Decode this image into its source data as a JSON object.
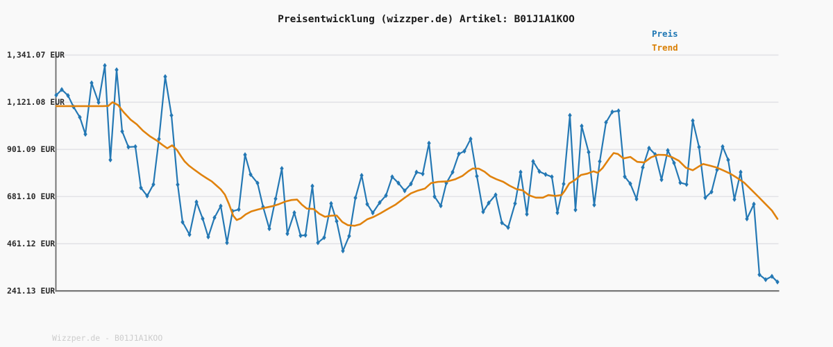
{
  "title": "Preisentwicklung (wizzper.de) Artikel: B01J1A1KOO",
  "watermark": "Wizzper.de - B01J1A1KOO",
  "legend": {
    "items": [
      {
        "label": "Preis",
        "color": "#1f77b4"
      },
      {
        "label": "Trend",
        "color": "#d97f04"
      }
    ]
  },
  "chart_data": {
    "type": "line",
    "title": "Preisentwicklung (wizzper.de) Artikel: B01J1A1KOO",
    "grid": true,
    "legend_position": "top-right",
    "x_axis": {
      "labels_visible": false
    },
    "y_axis": {
      "unit": "EUR",
      "ticks": [
        {
          "value": 1341.07,
          "label": "1,341.07 EUR"
        },
        {
          "value": 1121.08,
          "label": "1,121.08 EUR"
        },
        {
          "value": 901.09,
          "label": "901.09 EUR"
        },
        {
          "value": 681.1,
          "label": "681.10 EUR"
        },
        {
          "value": 461.12,
          "label": "461.12 EUR"
        },
        {
          "value": 241.13,
          "label": "241.13 EUR"
        }
      ]
    },
    "ylim": [
      241.13,
      1355.0
    ],
    "style": {
      "background": "#f9f9f9",
      "grid_color": "#e3e3e7",
      "axis_color": "#707070",
      "price_color": "#2478b4",
      "trend_color": "#e0820d",
      "marker": "diamond"
    },
    "series": [
      {
        "name": "Preis",
        "color": "#2478b4",
        "marker": "diamond",
        "points": [
          [
            81,
            1154
          ],
          [
            89,
            1180
          ],
          [
            98,
            1152
          ],
          [
            106,
            1099
          ],
          [
            115,
            1051
          ],
          [
            123,
            972
          ],
          [
            132,
            1211
          ],
          [
            142,
            1120
          ],
          [
            151,
            1292
          ],
          [
            159,
            852
          ],
          [
            168,
            1272
          ],
          [
            176,
            985
          ],
          [
            185,
            912
          ],
          [
            195,
            914
          ],
          [
            203,
            722
          ],
          [
            212,
            684
          ],
          [
            221,
            738
          ],
          [
            229,
            950
          ],
          [
            238,
            1240
          ],
          [
            247,
            1060
          ],
          [
            256,
            737
          ],
          [
            263,
            562
          ],
          [
            273,
            504
          ],
          [
            283,
            656
          ],
          [
            292,
            578
          ],
          [
            300,
            493
          ],
          [
            309,
            583
          ],
          [
            318,
            637
          ],
          [
            327,
            466
          ],
          [
            335,
            613
          ],
          [
            344,
            621
          ],
          [
            353,
            876
          ],
          [
            361,
            784
          ],
          [
            371,
            744
          ],
          [
            379,
            633
          ],
          [
            388,
            531
          ],
          [
            397,
            671
          ],
          [
            406,
            812
          ],
          [
            414,
            508
          ],
          [
            424,
            606
          ],
          [
            433,
            499
          ],
          [
            440,
            501
          ],
          [
            450,
            730
          ],
          [
            458,
            466
          ],
          [
            467,
            490
          ],
          [
            477,
            649
          ],
          [
            485,
            566
          ],
          [
            494,
            428
          ],
          [
            503,
            497
          ],
          [
            512,
            675
          ],
          [
            521,
            780
          ],
          [
            529,
            646
          ],
          [
            537,
            605
          ],
          [
            547,
            653
          ],
          [
            556,
            686
          ],
          [
            565,
            773
          ],
          [
            574,
            744
          ],
          [
            583,
            708
          ],
          [
            592,
            740
          ],
          [
            600,
            795
          ],
          [
            609,
            787
          ],
          [
            618,
            930
          ],
          [
            626,
            681
          ],
          [
            635,
            638
          ],
          [
            643,
            744
          ],
          [
            652,
            795
          ],
          [
            661,
            880
          ],
          [
            669,
            893
          ],
          [
            678,
            950
          ],
          [
            687,
            776
          ],
          [
            696,
            610
          ],
          [
            704,
            651
          ],
          [
            714,
            689
          ],
          [
            723,
            559
          ],
          [
            732,
            537
          ],
          [
            742,
            649
          ],
          [
            750,
            795
          ],
          [
            759,
            599
          ],
          [
            768,
            845
          ],
          [
            777,
            798
          ],
          [
            786,
            784
          ],
          [
            795,
            773
          ],
          [
            803,
            606
          ],
          [
            812,
            740
          ],
          [
            821,
            1060
          ],
          [
            829,
            619
          ],
          [
            838,
            1010
          ],
          [
            848,
            888
          ],
          [
            856,
            642
          ],
          [
            864,
            845
          ],
          [
            873,
            1027
          ],
          [
            882,
            1076
          ],
          [
            891,
            1081
          ],
          [
            900,
            774
          ],
          [
            908,
            741
          ],
          [
            917,
            670
          ],
          [
            926,
            817
          ],
          [
            935,
            907
          ],
          [
            944,
            877
          ],
          [
            953,
            760
          ],
          [
            962,
            896
          ],
          [
            971,
            838
          ],
          [
            980,
            746
          ],
          [
            989,
            738
          ],
          [
            998,
            1035
          ],
          [
            1007,
            912
          ],
          [
            1016,
            676
          ],
          [
            1025,
            703
          ],
          [
            1033,
            806
          ],
          [
            1041,
            914
          ],
          [
            1049,
            852
          ],
          [
            1058,
            668
          ],
          [
            1067,
            795
          ],
          [
            1076,
            577
          ],
          [
            1086,
            646
          ],
          [
            1094,
            317
          ],
          [
            1103,
            294
          ],
          [
            1112,
            309
          ],
          [
            1120,
            283
          ]
        ]
      },
      {
        "name": "Trend",
        "color": "#e0820d",
        "marker": "none",
        "points": [
          [
            81,
            1103
          ],
          [
            148,
            1103
          ],
          [
            156,
            1104
          ],
          [
            162,
            1121
          ],
          [
            170,
            1108
          ],
          [
            178,
            1075
          ],
          [
            188,
            1040
          ],
          [
            197,
            1018
          ],
          [
            206,
            988
          ],
          [
            216,
            962
          ],
          [
            226,
            942
          ],
          [
            234,
            922
          ],
          [
            241,
            906
          ],
          [
            248,
            920
          ],
          [
            255,
            898
          ],
          [
            261,
            868
          ],
          [
            266,
            845
          ],
          [
            272,
            826
          ],
          [
            280,
            806
          ],
          [
            290,
            783
          ],
          [
            298,
            766
          ],
          [
            305,
            752
          ],
          [
            312,
            732
          ],
          [
            318,
            715
          ],
          [
            324,
            690
          ],
          [
            330,
            645
          ],
          [
            336,
            592
          ],
          [
            341,
            572
          ],
          [
            347,
            580
          ],
          [
            354,
            598
          ],
          [
            362,
            612
          ],
          [
            372,
            621
          ],
          [
            382,
            629
          ],
          [
            392,
            636
          ],
          [
            402,
            646
          ],
          [
            412,
            659
          ],
          [
            420,
            665
          ],
          [
            428,
            667
          ],
          [
            435,
            643
          ],
          [
            442,
            625
          ],
          [
            452,
            623
          ],
          [
            460,
            601
          ],
          [
            468,
            587
          ],
          [
            477,
            592
          ],
          [
            485,
            593
          ],
          [
            493,
            563
          ],
          [
            501,
            548
          ],
          [
            511,
            545
          ],
          [
            519,
            552
          ],
          [
            529,
            575
          ],
          [
            538,
            586
          ],
          [
            548,
            603
          ],
          [
            558,
            622
          ],
          [
            570,
            644
          ],
          [
            582,
            673
          ],
          [
            592,
            696
          ],
          [
            602,
            709
          ],
          [
            612,
            718
          ],
          [
            621,
            744
          ],
          [
            631,
            750
          ],
          [
            645,
            752
          ],
          [
            656,
            762
          ],
          [
            666,
            777
          ],
          [
            675,
            800
          ],
          [
            681,
            812
          ],
          [
            690,
            811
          ],
          [
            698,
            797
          ],
          [
            706,
            776
          ],
          [
            715,
            762
          ],
          [
            725,
            750
          ],
          [
            734,
            732
          ],
          [
            744,
            716
          ],
          [
            753,
            710
          ],
          [
            762,
            687
          ],
          [
            772,
            676
          ],
          [
            782,
            676
          ],
          [
            790,
            688
          ],
          [
            800,
            684
          ],
          [
            809,
            688
          ],
          [
            814,
            710
          ],
          [
            820,
            742
          ],
          [
            828,
            758
          ],
          [
            837,
            782
          ],
          [
            846,
            788
          ],
          [
            855,
            799
          ],
          [
            861,
            792
          ],
          [
            868,
            814
          ],
          [
            878,
            860
          ],
          [
            884,
            884
          ],
          [
            890,
            880
          ],
          [
            898,
            859
          ],
          [
            908,
            866
          ],
          [
            918,
            843
          ],
          [
            928,
            840
          ],
          [
            938,
            864
          ],
          [
            948,
            876
          ],
          [
            958,
            875
          ],
          [
            968,
            865
          ],
          [
            978,
            848
          ],
          [
            988,
            816
          ],
          [
            998,
            804
          ],
          [
            1006,
            820
          ],
          [
            1013,
            833
          ],
          [
            1022,
            826
          ],
          [
            1032,
            817
          ],
          [
            1042,
            803
          ],
          [
            1052,
            788
          ],
          [
            1062,
            768
          ],
          [
            1072,
            746
          ],
          [
            1082,
            714
          ],
          [
            1092,
            682
          ],
          [
            1102,
            649
          ],
          [
            1112,
            616
          ],
          [
            1120,
            577
          ]
        ]
      }
    ]
  }
}
